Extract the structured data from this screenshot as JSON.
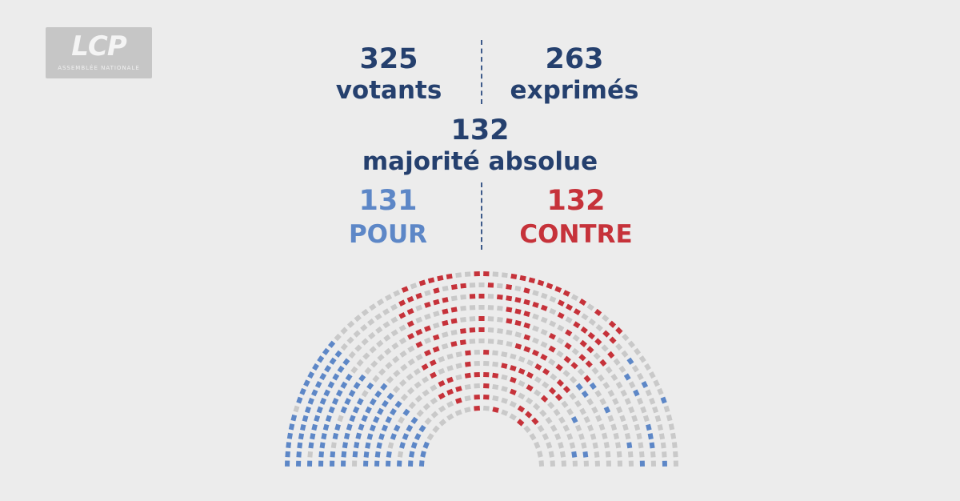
{
  "logo": {
    "text": "LCP",
    "subtitle": "ASSEMBLÉE NATIONALE"
  },
  "votants": {
    "value": "325",
    "label": "votants"
  },
  "exprimes": {
    "value": "263",
    "label": "exprimés"
  },
  "majorite": {
    "value": "132",
    "label": "majorité absolue"
  },
  "pour": {
    "value": "131",
    "label": "POUR"
  },
  "contre": {
    "value": "132",
    "label": "CONTRE"
  },
  "colors": {
    "navy": "#25406e",
    "pour": "#5d87c7",
    "contre": "#c6323a",
    "absent": "#c9c9c9",
    "background": "#ececec"
  },
  "chart_data": {
    "type": "hemicycle",
    "series": [
      {
        "name": "POUR",
        "values": [
          131
        ]
      },
      {
        "name": "CONTRE",
        "values": [
          132
        ]
      }
    ]
  }
}
